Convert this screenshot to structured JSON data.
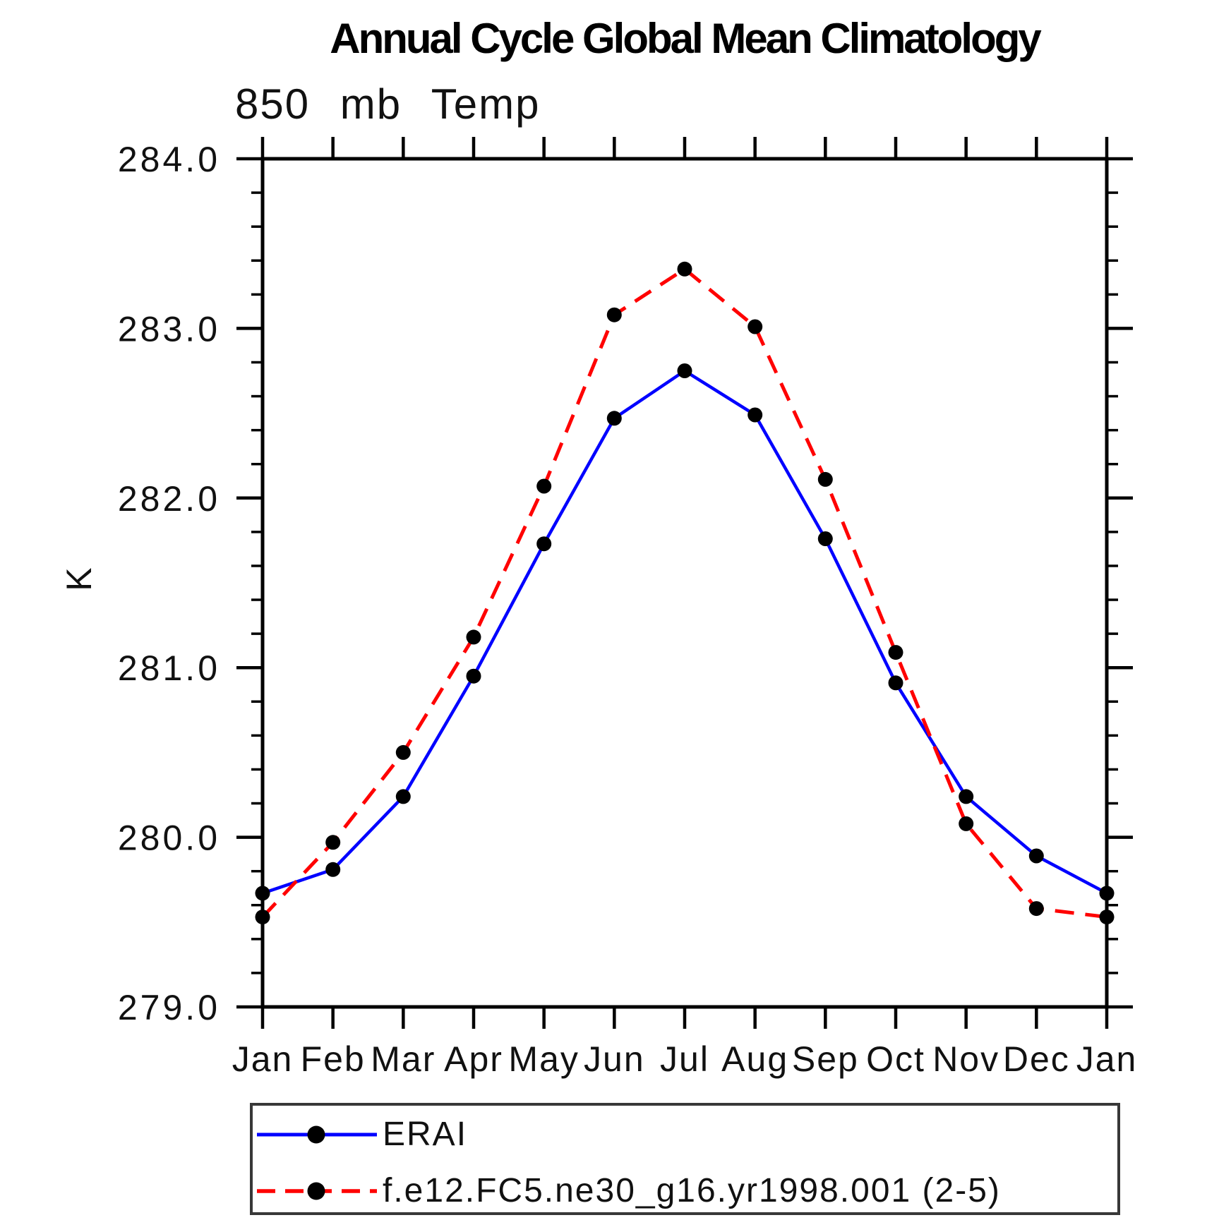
{
  "title": "Annual Cycle Global Mean Climatology",
  "subtitle": "850 mb Temp",
  "y_axis_title": "K",
  "legend": {
    "items": [
      {
        "label": "ERAI"
      },
      {
        "label": "f.e12.FC5.ne30_g16.yr1998.001 (2-5)"
      }
    ]
  },
  "chart_data": {
    "type": "line",
    "title": "Annual Cycle Global Mean Climatology",
    "subtitle": "850 mb Temp",
    "xlabel": "",
    "ylabel": "K",
    "categories": [
      "Jan",
      "Feb",
      "Mar",
      "Apr",
      "May",
      "Jun",
      "Jul",
      "Aug",
      "Sep",
      "Oct",
      "Nov",
      "Dec",
      "Jan"
    ],
    "series": [
      {
        "name": "ERAI",
        "line_color": "#0000ff",
        "line_style": "solid",
        "line_width": 4.5,
        "marker": "circle",
        "marker_color": "#000000",
        "marker_radius": 10.5,
        "values": [
          279.67,
          279.81,
          280.24,
          280.95,
          281.73,
          282.47,
          282.75,
          282.49,
          281.76,
          280.91,
          280.24,
          279.89,
          279.67
        ]
      },
      {
        "name": "f.e12.FC5.ne30_g16.yr1998.001 (2-5)",
        "line_color": "#ff0000",
        "line_style": "dashed",
        "dash_pattern": "27 16",
        "line_width": 5,
        "marker": "circle",
        "marker_color": "#000000",
        "marker_radius": 10.5,
        "values": [
          279.53,
          279.97,
          280.5,
          281.18,
          282.07,
          283.08,
          283.35,
          283.01,
          282.11,
          281.09,
          280.08,
          279.58,
          279.53
        ]
      }
    ],
    "ylim": [
      279.0,
      284.0
    ],
    "ytick_labels": [
      "279.0",
      "280.0",
      "281.0",
      "282.0",
      "283.0",
      "284.0"
    ],
    "ytick_values": [
      279.0,
      280.0,
      281.0,
      282.0,
      283.0,
      284.0
    ],
    "ytick_minor_step": 0.2,
    "grid": false,
    "axis_color": "#000000",
    "legend_position": "bottom"
  }
}
